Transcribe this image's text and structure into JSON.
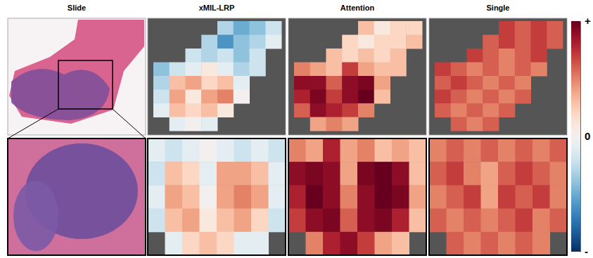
{
  "chart_data": {
    "type": "heatmap",
    "panels": [
      {
        "title": "Slide"
      },
      {
        "title": "xMIL-LRP",
        "overview": [
          [
            null,
            null,
            null,
            null,
            -0.3,
            -0.5,
            -0.4,
            -0.2
          ],
          [
            null,
            null,
            null,
            -0.3,
            -0.6,
            -0.4,
            -0.3,
            -0.1
          ],
          [
            null,
            null,
            -0.2,
            -0.3,
            -0.2,
            -0.4,
            -0.2,
            null
          ],
          [
            -0.4,
            -0.2,
            -0.1,
            0.1,
            -0.1,
            -0.3,
            -0.2,
            null
          ],
          [
            -0.3,
            0.3,
            0.4,
            0.2,
            0.3,
            -0.1,
            null,
            null
          ],
          [
            -0.2,
            0.4,
            0.1,
            0.4,
            0.5,
            0.0,
            null,
            null
          ],
          [
            -0.1,
            0.3,
            0.2,
            0.3,
            0.1,
            null,
            null,
            null
          ],
          [
            null,
            -0.1,
            0.0,
            -0.1,
            null,
            null,
            null,
            null
          ]
        ],
        "zoom": [
          [
            -0.1,
            -0.2,
            -0.1,
            0.0,
            -0.1,
            -0.2,
            -0.1,
            -0.2
          ],
          [
            -0.2,
            0.3,
            0.2,
            -0.1,
            0.4,
            0.4,
            0.3,
            -0.1
          ],
          [
            -0.1,
            0.4,
            0.3,
            0.0,
            0.4,
            0.5,
            0.4,
            -0.1
          ],
          [
            -0.2,
            0.3,
            0.4,
            0.1,
            0.3,
            0.4,
            0.2,
            -0.2
          ],
          [
            null,
            -0.1,
            0.2,
            0.3,
            0.2,
            -0.1,
            -0.1,
            null
          ]
        ]
      },
      {
        "title": "Attention",
        "overview": [
          [
            null,
            null,
            null,
            null,
            0.3,
            0.1,
            0.2,
            0.2
          ],
          [
            null,
            null,
            null,
            0.2,
            0.1,
            0.2,
            0.2,
            0.3
          ],
          [
            null,
            null,
            0.3,
            0.2,
            0.3,
            0.2,
            0.3,
            null
          ],
          [
            0.5,
            0.4,
            0.3,
            0.7,
            0.4,
            0.3,
            0.3,
            null
          ],
          [
            0.9,
            0.9,
            0.6,
            0.9,
            0.95,
            0.4,
            null,
            null
          ],
          [
            0.8,
            0.95,
            0.7,
            0.9,
            1.0,
            0.3,
            null,
            null
          ],
          [
            0.6,
            0.9,
            0.8,
            0.7,
            0.5,
            null,
            null,
            null
          ],
          [
            null,
            0.4,
            0.5,
            0.4,
            null,
            null,
            null,
            null
          ]
        ],
        "zoom": [
          [
            0.5,
            0.4,
            0.8,
            0.4,
            0.5,
            0.3,
            0.4,
            0.3
          ],
          [
            0.9,
            0.95,
            0.9,
            0.4,
            0.95,
            1.0,
            0.9,
            0.3
          ],
          [
            0.8,
            1.0,
            0.9,
            0.5,
            0.9,
            1.0,
            0.95,
            0.4
          ],
          [
            0.7,
            0.9,
            0.95,
            0.6,
            0.9,
            0.95,
            0.8,
            0.3
          ],
          [
            null,
            0.5,
            0.8,
            0.9,
            0.7,
            0.4,
            0.3,
            null
          ]
        ]
      },
      {
        "title": "Single",
        "overview": [
          [
            null,
            null,
            null,
            null,
            0.7,
            0.6,
            0.7,
            0.6
          ],
          [
            null,
            null,
            null,
            0.6,
            0.7,
            0.6,
            0.7,
            0.6
          ],
          [
            null,
            null,
            0.7,
            0.6,
            0.5,
            0.6,
            0.7,
            null
          ],
          [
            0.7,
            0.6,
            0.5,
            0.6,
            0.5,
            0.6,
            0.5,
            null
          ],
          [
            0.6,
            0.7,
            0.6,
            0.5,
            0.6,
            0.5,
            null,
            null
          ],
          [
            0.7,
            0.6,
            0.5,
            0.6,
            0.5,
            0.6,
            null,
            null
          ],
          [
            0.6,
            0.5,
            0.6,
            0.5,
            0.6,
            null,
            null,
            null
          ],
          [
            null,
            0.6,
            0.5,
            0.6,
            null,
            null,
            null,
            null
          ]
        ],
        "zoom": [
          [
            0.5,
            0.6,
            0.5,
            0.6,
            0.5,
            0.6,
            0.5,
            0.6
          ],
          [
            0.6,
            0.7,
            0.5,
            0.4,
            0.6,
            0.7,
            0.6,
            0.5
          ],
          [
            0.5,
            0.6,
            0.7,
            0.4,
            0.7,
            0.6,
            0.7,
            0.5
          ],
          [
            0.6,
            0.5,
            0.6,
            0.5,
            0.6,
            0.7,
            0.5,
            0.6
          ],
          [
            null,
            0.6,
            0.5,
            0.6,
            0.5,
            0.6,
            0.5,
            null
          ]
        ]
      }
    ],
    "colorbar": {
      "range": [
        -1,
        1
      ],
      "ticks": [
        {
          "value": 1,
          "label": "+"
        },
        {
          "value": 0,
          "label": "0"
        },
        {
          "value": -1,
          "label": "-"
        }
      ]
    }
  }
}
